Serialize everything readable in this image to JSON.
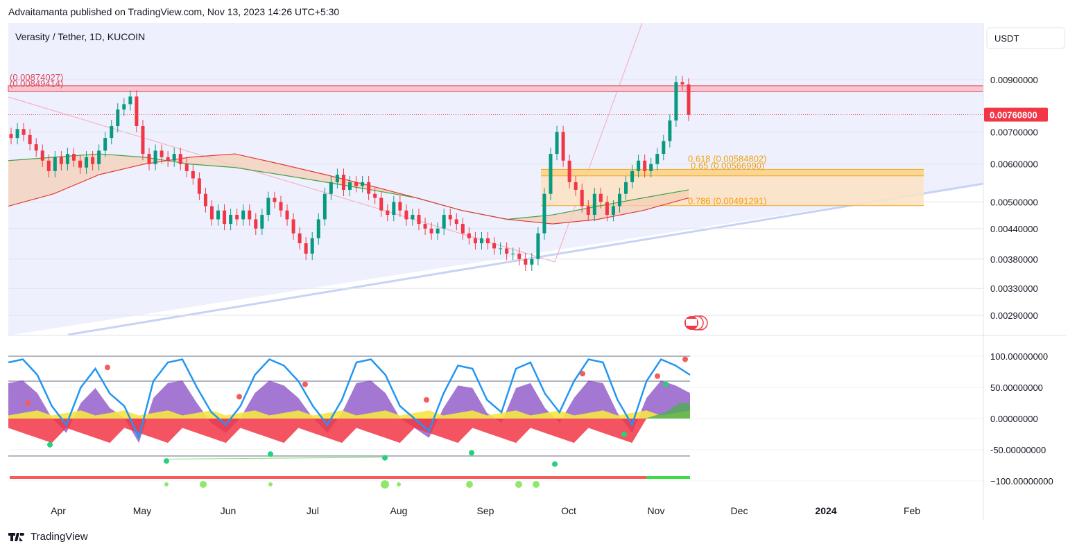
{
  "header": {
    "published": "Advaitamanta published on TradingView.com, Nov 13, 2023 14:26 UTC+5:30"
  },
  "footer": {
    "brand": "TradingView"
  },
  "chart_data": {
    "type": "candlestick",
    "title": "Verasity / Tether, 1D, KUCOIN",
    "currency_button": "USDT",
    "price_axis": {
      "ticks": [
        {
          "value": 0.009,
          "label": "0.00900000"
        },
        {
          "value": 0.007,
          "label": "0.00700000"
        },
        {
          "value": 0.006,
          "label": "0.00600000"
        },
        {
          "value": 0.005,
          "label": "0.00500000"
        },
        {
          "value": 0.0044,
          "label": "0.00440000"
        },
        {
          "value": 0.0038,
          "label": "0.00380000"
        },
        {
          "value": 0.0033,
          "label": "0.00330000"
        },
        {
          "value": 0.0029,
          "label": "0.00290000"
        }
      ],
      "scale": "log",
      "last_price": {
        "value": 0.007608,
        "label": "0.00760800"
      }
    },
    "x_axis": {
      "labels": [
        "Apr",
        "May",
        "Jun",
        "Jul",
        "Aug",
        "Sep",
        "Oct",
        "Nov",
        "Dec",
        "2024",
        "Feb"
      ]
    },
    "resistance_zone": {
      "upper": 0.00874027,
      "lower": 0.00849414,
      "labels": [
        "(0.00874027)",
        "(0.00849414)"
      ]
    },
    "fib_levels": [
      {
        "ratio": 0.618,
        "value": 0.00584802,
        "label": "0.618 (0.00584802)"
      },
      {
        "ratio": 0.65,
        "value": 0.0056699,
        "label": "0.65 (0.00566990)"
      },
      {
        "ratio": 0.786,
        "value": 0.00491291,
        "label": "0.786 (0.00491291)"
      }
    ],
    "candles_close": [
      0.0068,
      0.0071,
      0.0069,
      0.0066,
      0.0064,
      0.0061,
      0.0058,
      0.0062,
      0.006,
      0.0063,
      0.0061,
      0.0059,
      0.0062,
      0.006,
      0.0064,
      0.0068,
      0.0072,
      0.0078,
      0.008,
      0.0083,
      0.0072,
      0.0063,
      0.006,
      0.0064,
      0.0062,
      0.0061,
      0.0063,
      0.006,
      0.0058,
      0.0056,
      0.0052,
      0.0049,
      0.0046,
      0.0048,
      0.0045,
      0.0047,
      0.0046,
      0.0048,
      0.0046,
      0.0044,
      0.0047,
      0.0051,
      0.005,
      0.0048,
      0.0046,
      0.0043,
      0.0041,
      0.0039,
      0.0042,
      0.0046,
      0.0052,
      0.0055,
      0.0057,
      0.0053,
      0.0055,
      0.0054,
      0.0055,
      0.0052,
      0.0051,
      0.0048,
      0.0047,
      0.005,
      0.0048,
      0.0046,
      0.0047,
      0.0045,
      0.0044,
      0.0043,
      0.0044,
      0.0047,
      0.0046,
      0.0045,
      0.0043,
      0.0042,
      0.0041,
      0.0042,
      0.0041,
      0.004,
      0.004,
      0.0039,
      0.0039,
      0.0038,
      0.0037,
      0.0038,
      0.0043,
      0.0052,
      0.0063,
      0.007,
      0.0061,
      0.0055,
      0.0053,
      0.0049,
      0.0047,
      0.0052,
      0.005,
      0.0047,
      0.0049,
      0.0052,
      0.0055,
      0.0058,
      0.0061,
      0.0058,
      0.006,
      0.0063,
      0.0067,
      0.0074,
      0.0089,
      0.0088,
      0.0076
    ],
    "ma_green": [
      0.0061,
      0.0062,
      0.0063,
      0.0062,
      0.006,
      0.0059,
      0.0057,
      0.0055,
      0.0053,
      0.0051,
      0.0048,
      0.0046,
      0.0047,
      0.0049,
      0.0051,
      0.0053
    ],
    "ma_red": [
      0.0049,
      0.0052,
      0.0057,
      0.006,
      0.0062,
      0.0063,
      0.006,
      0.0057,
      0.0054,
      0.0051,
      0.0048,
      0.0046,
      0.0045,
      0.0046,
      0.0048,
      0.0051
    ],
    "oscillator": {
      "ticks": [
        {
          "value": 100,
          "label": "100.00000000"
        },
        {
          "value": 50,
          "label": "50.00000000"
        },
        {
          "value": 0,
          "label": "0.00000000"
        },
        {
          "value": -50,
          "label": "-50.00000000"
        },
        {
          "value": -100,
          "label": "−100.00000000"
        }
      ],
      "levels": [
        100,
        60,
        -60
      ],
      "blue_line": [
        90,
        95,
        70,
        20,
        -10,
        50,
        80,
        40,
        20,
        -30,
        60,
        90,
        95,
        50,
        10,
        -10,
        20,
        70,
        95,
        85,
        60,
        20,
        -10,
        30,
        90,
        95,
        70,
        20,
        0,
        -20,
        40,
        85,
        80,
        30,
        10,
        80,
        90,
        40,
        10,
        60,
        95,
        90,
        30,
        -10,
        60,
        95,
        85,
        70
      ],
      "colors": {
        "blue": "#2196f3",
        "purple": "#7e3fbf",
        "red": "#f23645",
        "yellow": "#f5e642",
        "green": "#4caf50"
      }
    }
  }
}
